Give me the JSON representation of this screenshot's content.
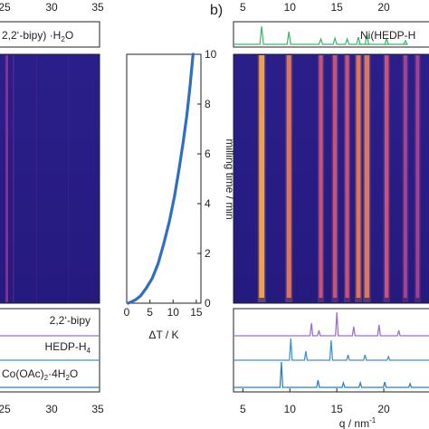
{
  "panel_labels": {
    "b": "b)"
  },
  "chart_data": [
    {
      "type": "heatmap",
      "panel": "a (cropped)",
      "top_ticks": [
        "25",
        "30",
        "35"
      ],
      "bottom_ticks": [
        "25",
        "30",
        "35"
      ],
      "top_reference_label": "2,2‘-bipy) ·H",
      "top_reference_sub": "2",
      "top_reference_tail": "O",
      "reference_patterns": [
        {
          "name": "2,2‘-bipy",
          "color": "#a46bd6"
        },
        {
          "name": "HEDP-H",
          "sub": "4",
          "color": "#4a8fc9"
        },
        {
          "name": "Co(OAc)",
          "sub": "2",
          "tail": "·4H",
          "sub2": "2",
          "tail2": "O",
          "color": "#2f7fc0"
        }
      ]
    },
    {
      "type": "line",
      "xlabel": "ΔT / K",
      "ylabel": "milling time / min",
      "xticks": [
        0,
        5,
        10,
        15
      ],
      "yticks": [
        0,
        2,
        4,
        6,
        8,
        10
      ],
      "xlim": [
        0,
        16
      ],
      "ylim": [
        0,
        10
      ],
      "color": "#2f6fc0",
      "series": [
        {
          "x": [
            0.3,
            1.0,
            2.0,
            3.0,
            4.2,
            5.5,
            6.8,
            8.0,
            9.2,
            10.3,
            11.3,
            12.2,
            13.0,
            13.7,
            14.3
          ],
          "y": [
            0.0,
            0.05,
            0.15,
            0.3,
            0.6,
            1.0,
            1.6,
            2.4,
            3.3,
            4.3,
            5.4,
            6.5,
            7.6,
            8.8,
            10.0
          ]
        }
      ]
    },
    {
      "type": "heatmap",
      "panel": "b",
      "xlabel": "q / nm",
      "xlabel_sup": "-1",
      "xticks": [
        "5",
        "10",
        "15",
        "20"
      ],
      "top_reference_label": "Ni(HEDP-H",
      "top_reference_color": "#3cb36a",
      "lines": [
        {
          "q": 7.0,
          "intensity": 0.95
        },
        {
          "q": 9.9,
          "intensity": 0.75
        },
        {
          "q": 13.3,
          "intensity": 0.55
        },
        {
          "q": 14.8,
          "intensity": 0.6
        },
        {
          "q": 16.1,
          "intensity": 0.55
        },
        {
          "q": 17.3,
          "intensity": 0.7
        },
        {
          "q": 18.2,
          "intensity": 0.85
        },
        {
          "q": 20.3,
          "intensity": 0.6
        },
        {
          "q": 22.3,
          "intensity": 0.5
        },
        {
          "q": 23.6,
          "intensity": 0.45
        }
      ],
      "reference_patterns": [
        {
          "color": "#a46bd6",
          "peaks": [
            12.3,
            13.1,
            15.0,
            16.8,
            19.5,
            21.6
          ]
        },
        {
          "color": "#4a8fc9",
          "peaks": [
            10.1,
            11.7,
            14.4,
            16.2,
            18.0,
            20.5
          ]
        },
        {
          "color": "#2f7fc0",
          "peaks": [
            9.1,
            13.0,
            15.7,
            17.5,
            20.1,
            22.8
          ]
        }
      ]
    }
  ]
}
